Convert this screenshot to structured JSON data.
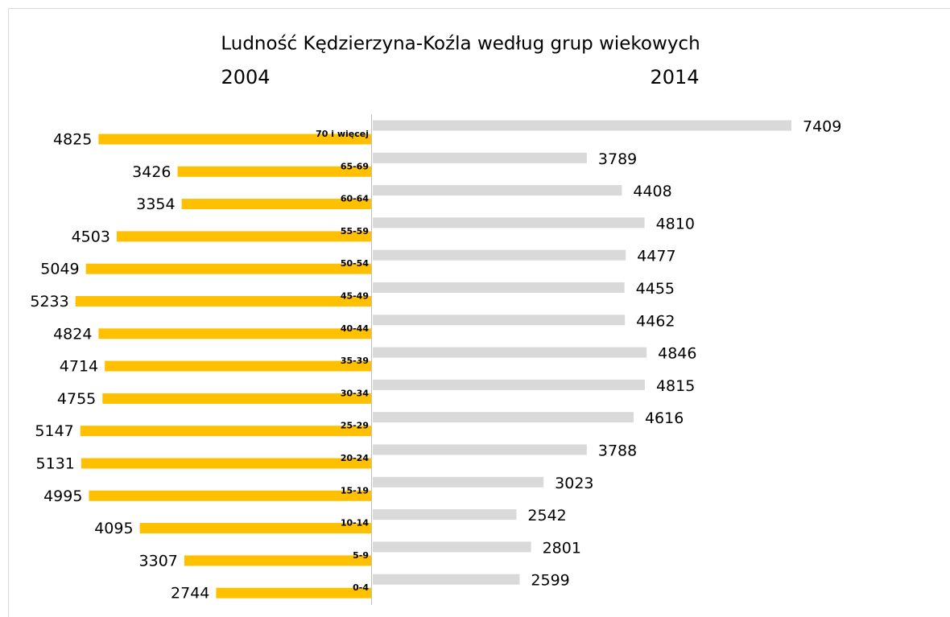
{
  "chart_data": {
    "type": "pyramid",
    "title": "Ludność Kędzierzyna-Koźla według grup wiekowych",
    "categories": [
      "70 i więcej",
      "65-69",
      "60-64",
      "55-59",
      "50-54",
      "45-49",
      "40-44",
      "35-39",
      "30-34",
      "25-29",
      "20-24",
      "15-19",
      "10-14",
      "5-9",
      "0-4"
    ],
    "series": [
      {
        "name": "2004",
        "color": "#ffc000",
        "values": [
          4825,
          3426,
          3354,
          4503,
          5049,
          5233,
          4824,
          4714,
          4755,
          5147,
          5131,
          4995,
          4095,
          3307,
          2744
        ]
      },
      {
        "name": "2014",
        "color": "#d9d9d9",
        "values": [
          7409,
          3789,
          4408,
          4810,
          4477,
          4455,
          4462,
          4846,
          4815,
          4616,
          3788,
          3023,
          2542,
          2801,
          2599
        ]
      }
    ]
  }
}
